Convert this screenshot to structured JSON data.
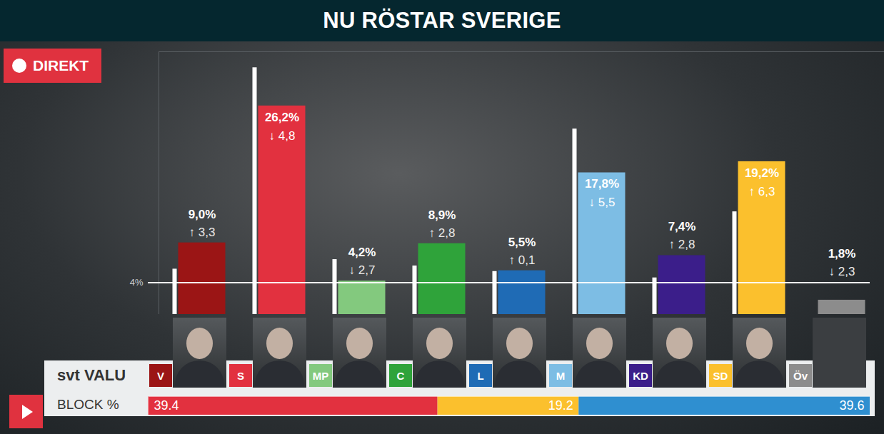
{
  "header": {
    "title": "NU RÖSTAR SVERIGE",
    "badge": "DIREKT"
  },
  "footer": {
    "brand": "svt VALU"
  },
  "chart_data": [
    {
      "type": "bar",
      "categories": [
        "V",
        "S",
        "MP",
        "C",
        "L",
        "M",
        "KD",
        "SD",
        "Öv"
      ],
      "values": [
        9.0,
        26.2,
        4.2,
        8.9,
        5.5,
        17.8,
        7.4,
        19.2,
        1.8
      ],
      "value_labels": [
        "9,0%",
        "26,2%",
        "4,2%",
        "8,9%",
        "5,5%",
        "17,8%",
        "7,4%",
        "19,2%",
        "1,8%"
      ],
      "colors": [
        "#9b1515",
        "#e2313f",
        "#83c97e",
        "#2fa33a",
        "#1f6bb5",
        "#7dbde4",
        "#3b1e8a",
        "#fbc02d",
        "#8c8c8c"
      ],
      "previous_values": [
        5.7,
        31.0,
        6.9,
        6.1,
        5.4,
        23.3,
        4.6,
        12.9,
        null
      ],
      "change_labels": [
        "↑ 3,3",
        "↓ 4,8",
        "↓ 2,7",
        "↑ 2,8",
        "↑ 0,1",
        "↓ 5,5",
        "↑ 2,8",
        "↑ 6,3",
        "↓ 2,3"
      ],
      "ylim": [
        0,
        33
      ],
      "yticks": [
        {
          "value": 4,
          "label": "4%"
        }
      ],
      "data_labels": true
    },
    {
      "type": "bar",
      "orientation": "horizontal",
      "stacked": true,
      "title": "BLOCK %",
      "values": [
        39.4,
        19.2,
        39.6
      ],
      "colors": [
        "#e2313f",
        "#fbc02d",
        "#2f8fd0"
      ],
      "xlim": [
        0,
        98.2
      ],
      "data_labels": true,
      "tick_labels": false
    }
  ]
}
